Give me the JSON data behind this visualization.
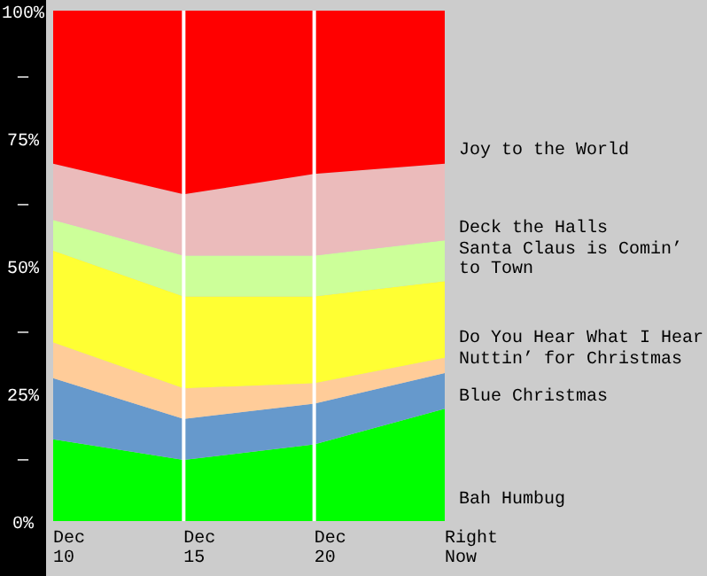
{
  "chart_data": {
    "type": "area",
    "stacked": true,
    "categories": [
      "Dec 10",
      "Dec 15",
      "Dec 20",
      "Right Now"
    ],
    "series": [
      {
        "name": "Bah Humbug",
        "color": "#00ff00",
        "values": [
          16,
          12,
          15,
          22
        ]
      },
      {
        "name": "Blue Christmas",
        "color": "#6699cc",
        "values": [
          12,
          8,
          8,
          7
        ]
      },
      {
        "name": "Nuttin’ for Christmas",
        "color": "#ffcc99",
        "values": [
          7,
          6,
          4,
          3
        ]
      },
      {
        "name": "Do You Hear What I Hear",
        "color": "#ffff33",
        "values": [
          18,
          18,
          17,
          15
        ]
      },
      {
        "name": "Santa Claus is Comin’ to Town",
        "color": "#ccff99",
        "values": [
          6,
          8,
          8,
          8
        ]
      },
      {
        "name": "Deck the Halls",
        "color": "#ebbbbb",
        "values": [
          11,
          12,
          16,
          15
        ]
      },
      {
        "name": "Joy to the World",
        "color": "#ff0000",
        "values": [
          30,
          36,
          32,
          30
        ]
      }
    ],
    "ylim": [
      0,
      100
    ],
    "yticks": [
      {
        "value": 0,
        "label": "0%"
      },
      {
        "value": 12.5,
        "label": "—"
      },
      {
        "value": 25,
        "label": "25%"
      },
      {
        "value": 37.5,
        "label": "—"
      },
      {
        "value": 50,
        "label": "50%"
      },
      {
        "value": 62.5,
        "label": "—"
      },
      {
        "value": 75,
        "label": "75%"
      },
      {
        "value": 87.5,
        "label": "—"
      },
      {
        "value": 100,
        "label": "100%"
      }
    ],
    "ref_lines": [
      {
        "axis": "x",
        "value": "Dec 15",
        "color": "#ffffff"
      },
      {
        "axis": "x",
        "value": "Dec 20",
        "color": "#ffffff"
      }
    ],
    "legend": "right"
  }
}
